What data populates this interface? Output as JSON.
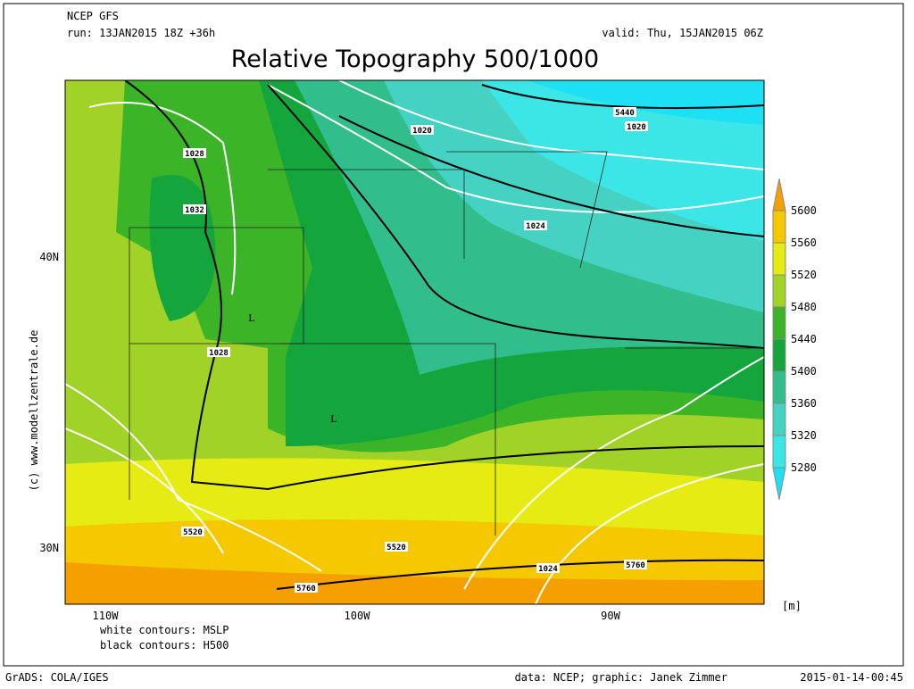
{
  "header": {
    "model": "NCEP GFS",
    "run": "run: 13JAN2015 18Z +36h",
    "valid": "valid: Thu, 15JAN2015 06Z",
    "title": "Relative Topography 500/1000"
  },
  "map": {
    "lat_labels": [
      "40N",
      "30N"
    ],
    "lon_labels": [
      "110W",
      "100W",
      "90W"
    ],
    "contour_labels": [
      "1028",
      "1032",
      "1028",
      "1020",
      "5440",
      "1020",
      "1024",
      "L",
      "L",
      "5520",
      "5520",
      "1024",
      "5760",
      "5760"
    ],
    "copyright": "(c) www.modellzentrale.de",
    "notes": [
      "white contours: MSLP",
      "black contours: H500"
    ]
  },
  "colorbar": {
    "unit": "[m]",
    "ticks": [
      5280,
      5320,
      5360,
      5400,
      5440,
      5480,
      5520,
      5560,
      5600
    ],
    "colors": [
      "#1ee0f5",
      "#3ce6e6",
      "#46d2c3",
      "#32be8c",
      "#14a53c",
      "#3cb428",
      "#a0d228",
      "#e6eb14",
      "#f5c800",
      "#f5a000"
    ]
  },
  "footer": {
    "software": "GrADS: COLA/IGES",
    "credit": "data: NCEP; graphic: Janek Zimmer",
    "timestamp": "2015-01-14-00:45"
  }
}
